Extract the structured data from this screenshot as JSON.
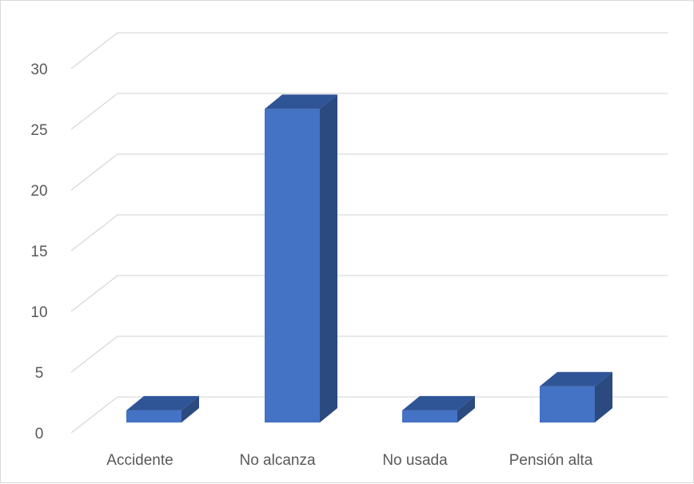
{
  "chart_data": {
    "type": "bar",
    "categories": [
      "Accidente",
      "No alcanza",
      "No usada",
      "Pensión alta"
    ],
    "values": [
      1,
      26,
      1,
      3
    ],
    "ylim": [
      0,
      30
    ],
    "yticks": [
      "0",
      "5",
      "10",
      "15",
      "20",
      "25",
      "30"
    ],
    "grid": true,
    "legend": "none",
    "colors": {
      "front": "#4472c4",
      "top": "#2f5597",
      "side": "#2b4a7f",
      "grid": "#d9d9d9"
    }
  }
}
